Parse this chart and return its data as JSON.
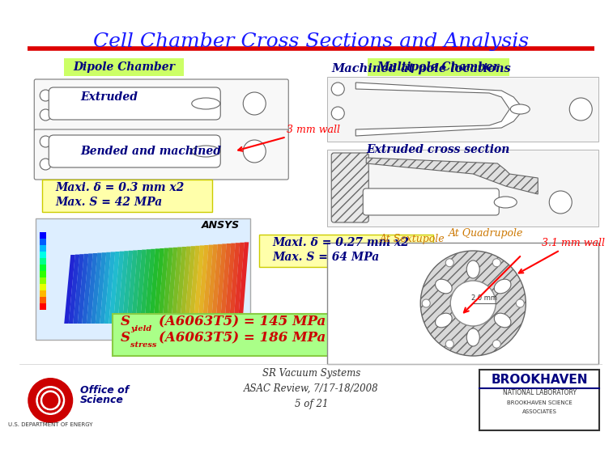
{
  "title": "Cell Chamber Cross Sections and Analysis",
  "title_color": "#1a1aff",
  "title_size": 18,
  "bg_color": "#ffffff",
  "dipole_label": "Dipole Chamber",
  "multipole_label": "Multipole Chamber",
  "extruded_label": "Extruded",
  "bended_label": "Bended and machined",
  "extruded_cross_label": "Extruded cross section",
  "at_quadrupole_label": "At Quadrupole",
  "machined_label": "Machined at pole locations",
  "at_sextupole_label": "At Sextupole",
  "wall_3mm_label": "3 mm wall",
  "wall_31mm_label": "3.1 mm wall",
  "maxi1_line1": "Maxi. δ = 0.3 mm x2",
  "maxi1_line2": "Max. S = 42 MPa",
  "maxi2_line1": "Maxi. δ = 0.27 mm x2",
  "maxi2_line2": "Max. S = 64 MPa",
  "syield_value": "(A6063T5) = 145 MPa",
  "sstress_value": "(A6063T5) = 186 MPa",
  "footer_center": "SR Vacuum Systems\nASAC Review, 7/17-18/2008\n5 of 21",
  "label_box_color": "#ccff66",
  "maxi_box_color": "#ffffaa",
  "syield_box_color": "#aaff88",
  "label_text_color": "#000080",
  "maxi_text_color": "#000080",
  "syield_text_color": "#cc0000",
  "red_line_color": "#dd0000"
}
